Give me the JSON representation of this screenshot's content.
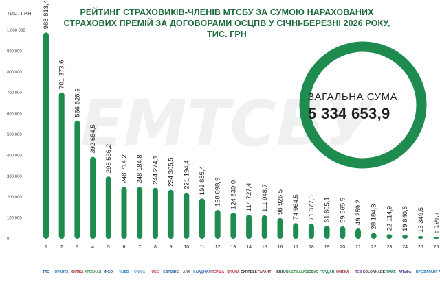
{
  "title": "РЕЙТИНГ СТРАХОВИКІВ-ЧЛЕНІВ МТСБУ ЗА СУМОЮ НАРАХОВАНИХ СТРАХОВИХ ПРЕМІЙ ЗА ДОГОВОРАМИ ОСЦПВ У СІЧНІ-БЕРЕЗНІ 2026 РОКУ, ТИС. ГРН",
  "unit_label": "ТИС. ГРН",
  "total": {
    "label": "ЗАГАЛЬНА СУМА",
    "value": "5 334 653,9"
  },
  "watermark": "ЕМТСБУ",
  "colors": {
    "bar": "#1e8c4e",
    "accent": "#1f6b3e",
    "ring": "#1e8c4e"
  },
  "chart_data": {
    "type": "bar",
    "title": "РЕЙТИНГ СТРАХОВИКІВ-ЧЛЕНІВ МТСБУ ЗА СУМОЮ НАРАХОВАНИХ СТРАХОВИХ ПРЕМІЙ ЗА ДОГОВОРАМИ ОСЦПВ У СІЧНІ-БЕРЕЗНІ 2026 РОКУ, ТИС. ГРН",
    "ylabel": "ТИС. ГРН",
    "xlabel": "",
    "ylim": [
      0,
      1000000
    ],
    "yticks": [
      "0",
      "100 000",
      "200 000",
      "300 000",
      "400 000",
      "500 000",
      "600 000",
      "700 000",
      "800 000",
      "900 000",
      "1 000 000"
    ],
    "grid": false,
    "categories": [
      "1",
      "2",
      "3",
      "4",
      "5",
      "6",
      "7",
      "8",
      "9",
      "10",
      "11",
      "12",
      "13",
      "14",
      "15",
      "16",
      "17",
      "18",
      "19",
      "20",
      "21",
      "22",
      "23",
      "24",
      "25",
      "26"
    ],
    "companies": [
      "ТАС",
      "ОРАНТА",
      "КНЯЖА",
      "АРСЕНАЛ",
      "INGO",
      "VUSO",
      "UNIQA",
      "USG",
      "ЄВРОІНС",
      "ARX",
      "КАРДІНАЛ",
      "ПЕРША",
      "КРАЇНА",
      "EXPRESS",
      "ГАРАНТ",
      "BBS",
      "UNIVERSALNA",
      "ГЛОБУС",
      "ГАРДІАН",
      "КНЯЖА",
      "ЛЕВ",
      "COLONNADE",
      "GRAWE",
      "АЛЬФА",
      "ВУСО",
      "ГАРАНТ АВТО"
    ],
    "values": [
      988813.4,
      701373.6,
      566528.9,
      392684.5,
      298536.2,
      248714.2,
      248184.8,
      244274.1,
      234305.5,
      221194.4,
      192855.4,
      138098.9,
      124830.0,
      114727.4,
      111948.7,
      98926.5,
      74964.5,
      71377.5,
      61805.1,
      59565.5,
      49259.2,
      28184.3,
      22114.9,
      19840.5,
      13349.5,
      8196.7
    ],
    "labels": [
      "988 813,4",
      "701 373,6",
      "566 528,9",
      "392 684,5",
      "298 536,2",
      "248 714,2",
      "248 184,8",
      "244 274,1",
      "234 305,5",
      "221 194,4",
      "192 855,4",
      "138 098,9",
      "124 830,0",
      "114 727,4",
      "111 948,7",
      "98 926,5",
      "74 964,5",
      "71 377,5",
      "61 805,1",
      "59 565,5",
      "49 259,2",
      "28 184,3",
      "22 114,9",
      "19 840,5",
      "13 349,5",
      "8 196,7"
    ]
  }
}
